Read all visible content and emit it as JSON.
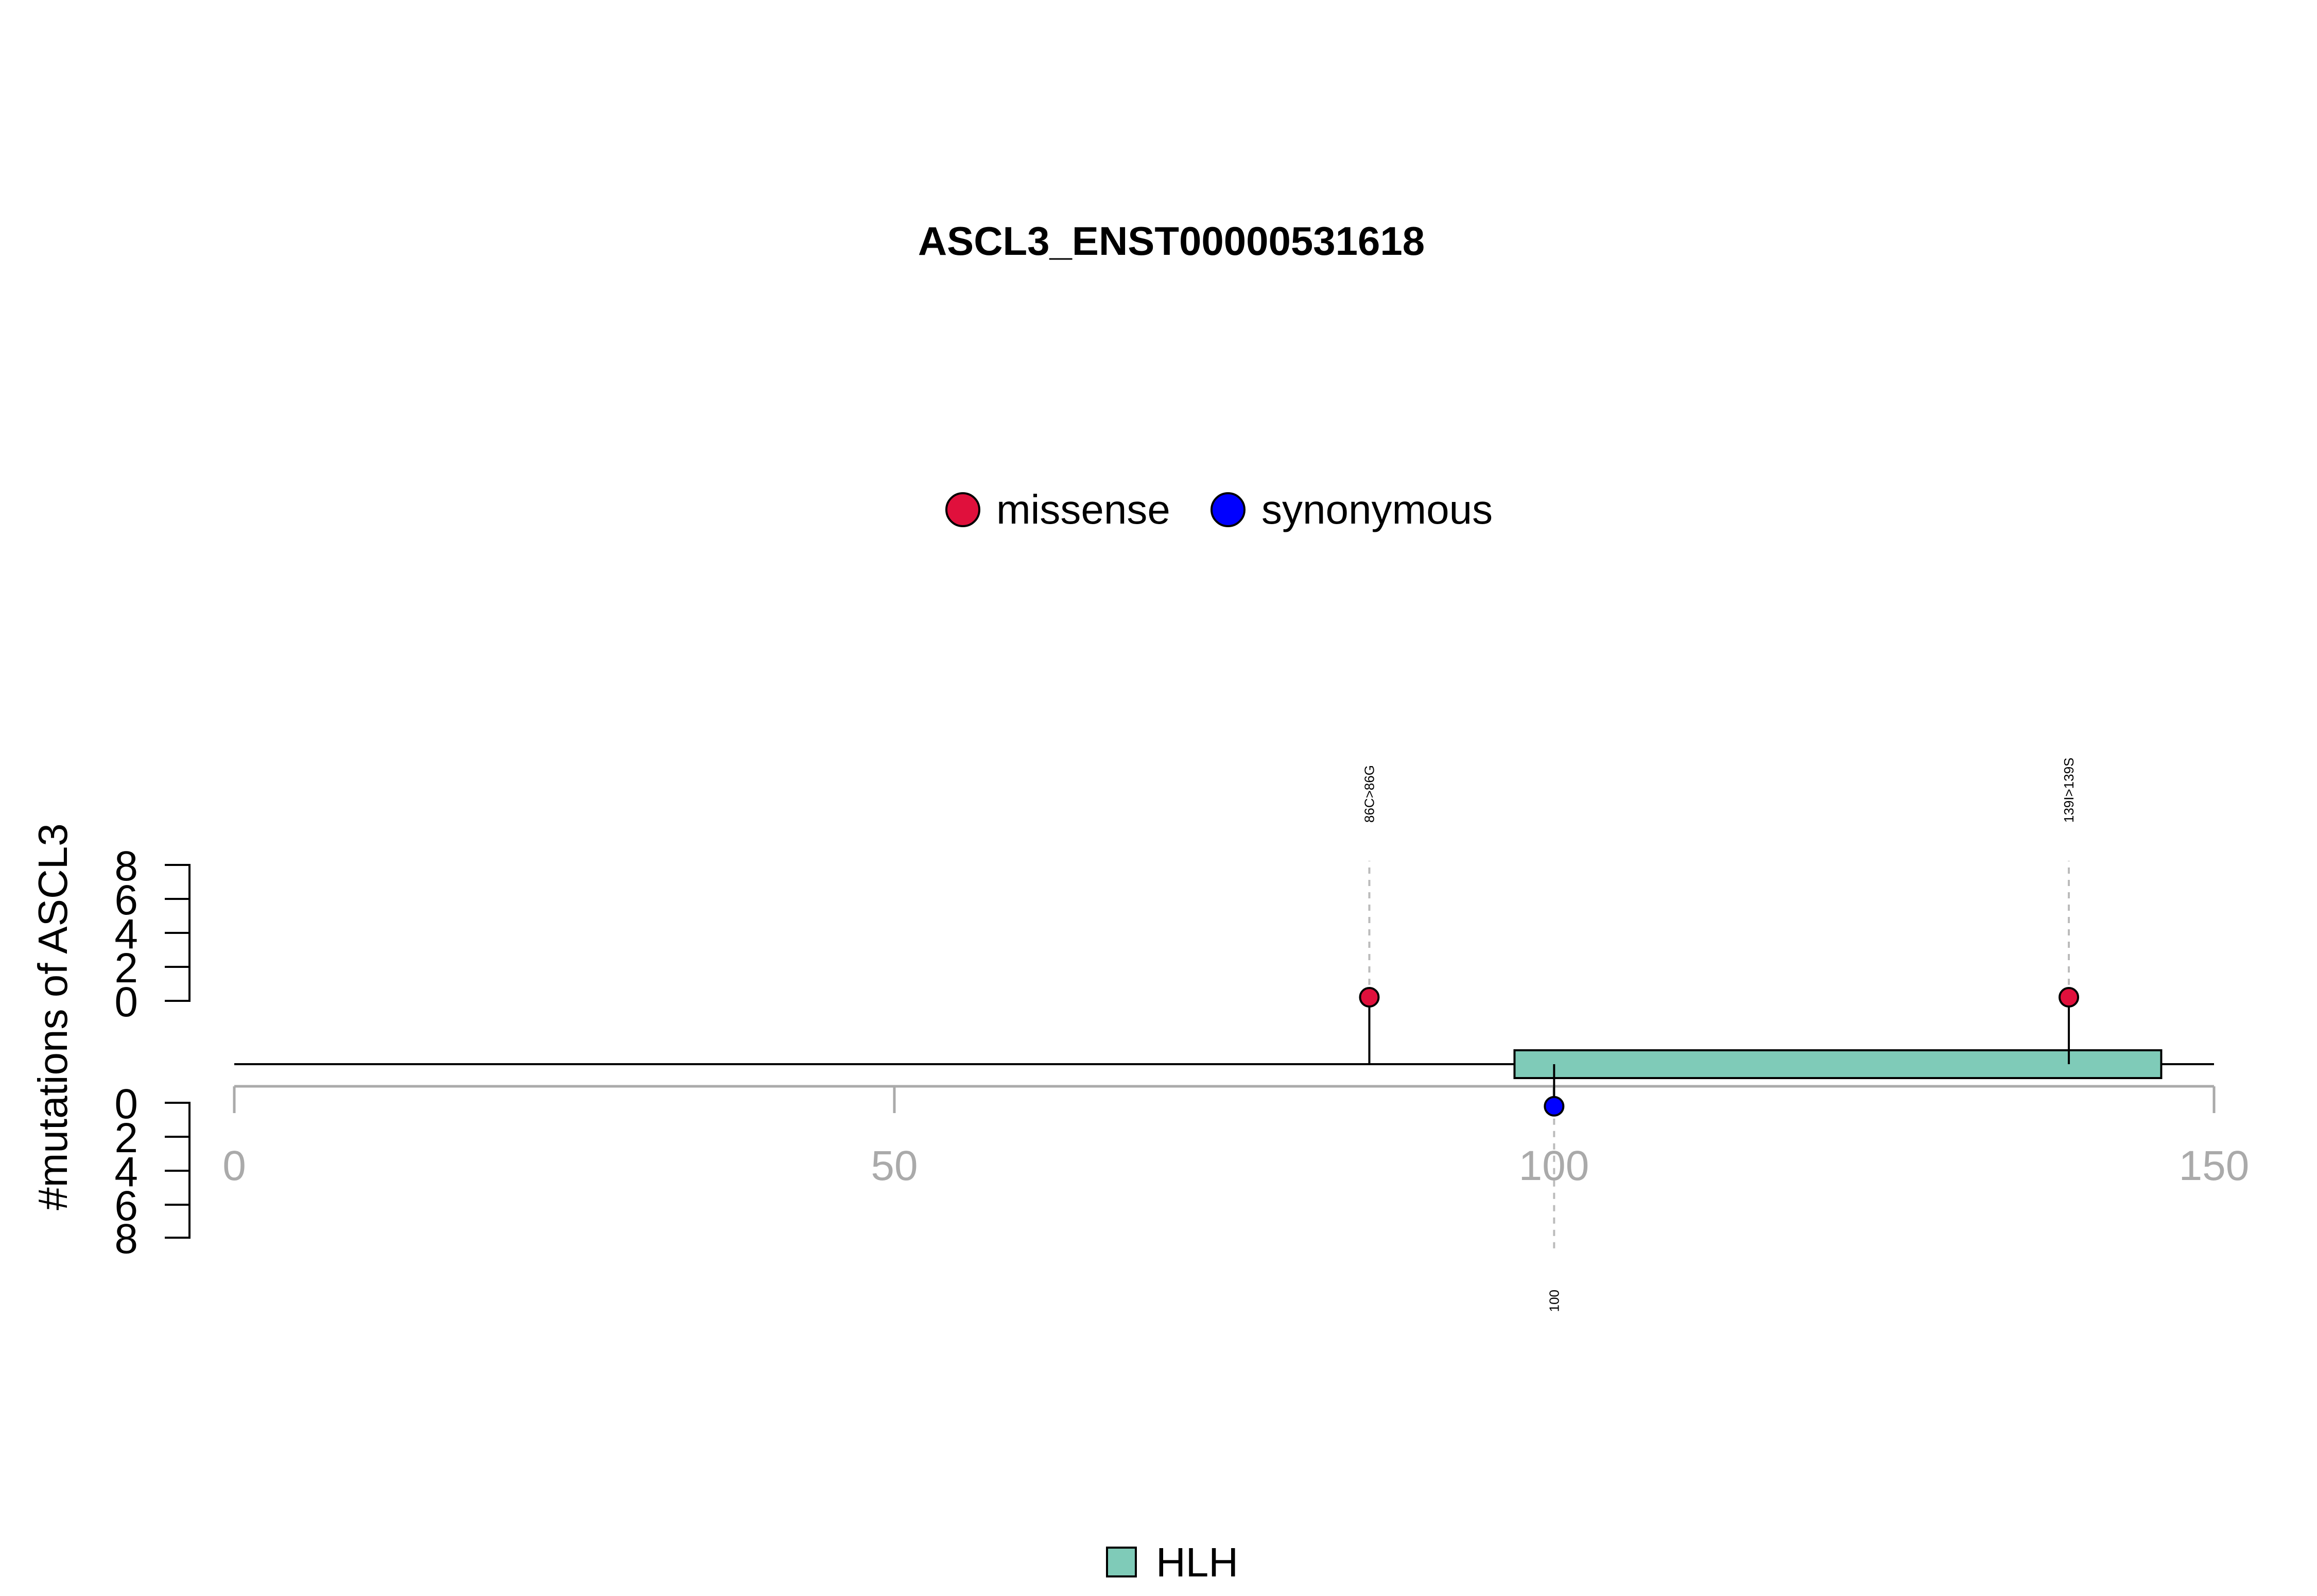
{
  "chart_data": {
    "type": "lollipop",
    "title": "ASCL3_ENST00000531618",
    "ylabel": "#mutations of ASCL3",
    "xlim": [
      0,
      150
    ],
    "x_ticks": [
      "0",
      "50",
      "100",
      "150"
    ],
    "y_ticks_top": [
      "8",
      "6",
      "4",
      "2",
      "0"
    ],
    "y_ticks_bottom": [
      "0",
      "2",
      "4",
      "6",
      "8"
    ],
    "ylim": [
      0,
      8
    ],
    "mutation_legend": [
      {
        "name": "missense",
        "color": "#E0103C"
      },
      {
        "name": "synonymous",
        "color": "#0000FF"
      }
    ],
    "domain_legend": [
      {
        "name": "HLH",
        "color": "#7FCBB8"
      }
    ],
    "domains": [
      {
        "name": "HLH",
        "start": 97,
        "end": 146,
        "color": "#7FCBB8"
      }
    ],
    "mutations": [
      {
        "position": 86,
        "count": 1,
        "type": "missense",
        "side": "top",
        "label": "86C>86G"
      },
      {
        "position": 139,
        "count": 1,
        "type": "missense",
        "side": "top",
        "label": "139I>139S"
      },
      {
        "position": 100,
        "count": 1,
        "type": "synonymous",
        "side": "bottom",
        "label": "100"
      }
    ]
  }
}
